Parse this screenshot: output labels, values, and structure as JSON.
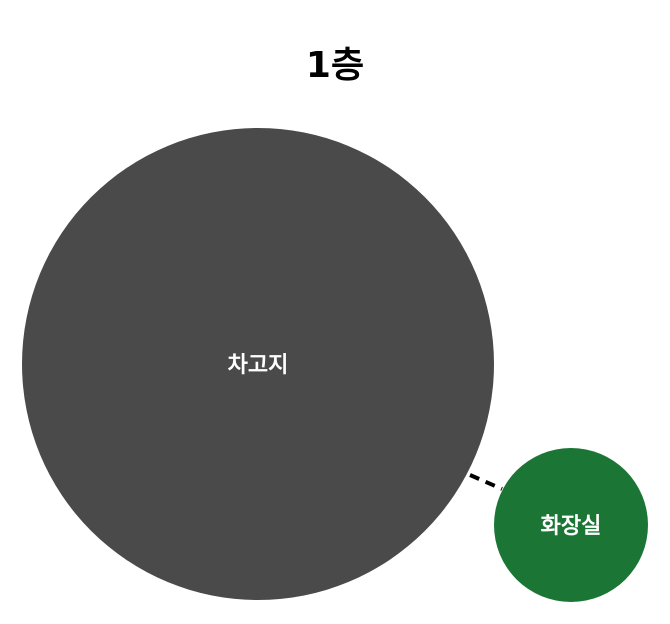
{
  "floor": {
    "title": "1층"
  },
  "rooms": [
    {
      "id": "garage",
      "label": "차고지",
      "color": "#4a4a4a"
    },
    {
      "id": "restroom",
      "label": "화장실",
      "color": "#1b7535"
    }
  ],
  "connections": [
    {
      "from": "garage",
      "to": "restroom",
      "style": "dashed",
      "color": "#000000"
    }
  ]
}
